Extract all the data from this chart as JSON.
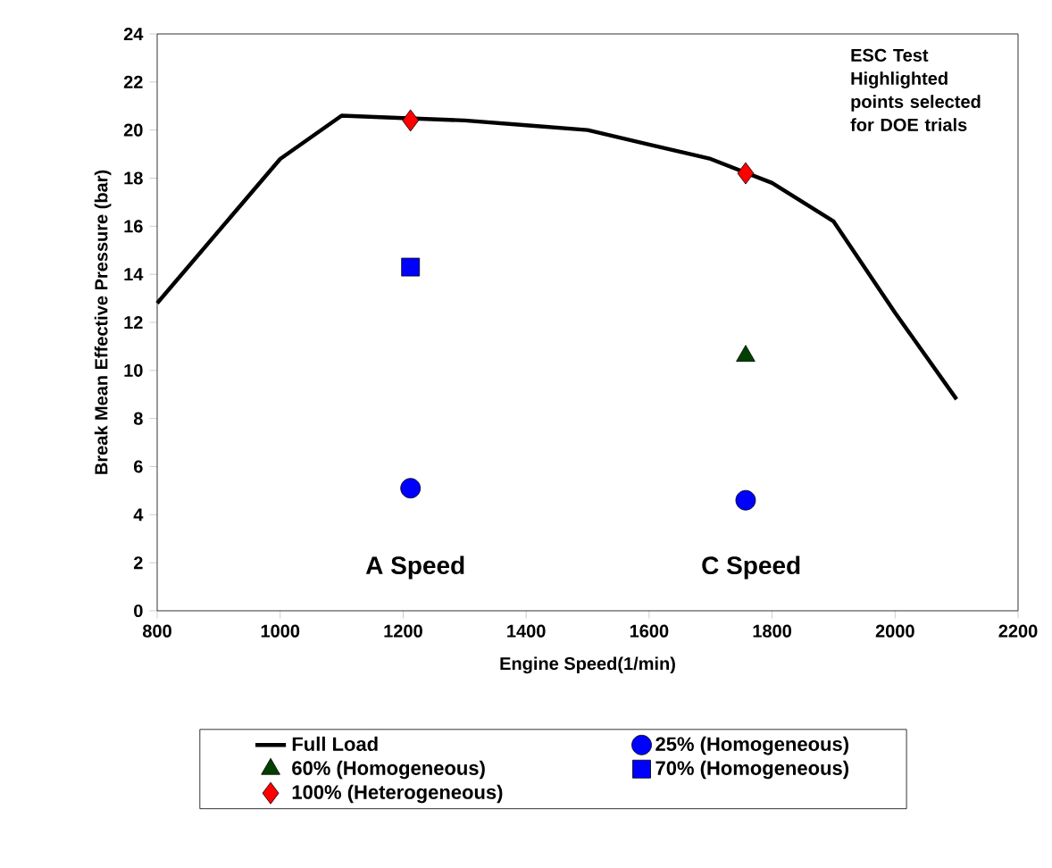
{
  "chart_data": {
    "type": "scatter",
    "xlabel": "Engine Speed(1/min)",
    "ylabel": "Break Mean Effective Pressure (bar)",
    "xlim": [
      800,
      2200
    ],
    "xticks": [
      800,
      1000,
      1200,
      1400,
      1600,
      1800,
      2000,
      2200
    ],
    "ylim": [
      0,
      24
    ],
    "yticks": [
      0,
      2,
      4,
      6,
      8,
      10,
      12,
      14,
      16,
      18,
      20,
      22,
      24
    ],
    "legend": "bottom",
    "grid": false,
    "series": [
      {
        "name": "Full Load",
        "type": "line",
        "color": "#000000",
        "marker": "none",
        "x": [
          800,
          1000,
          1100,
          1200,
          1300,
          1400,
          1500,
          1600,
          1700,
          1800,
          1900,
          2000,
          2100
        ],
        "values": [
          12.8,
          18.8,
          20.6,
          20.5,
          20.4,
          20.2,
          20.0,
          19.4,
          18.8,
          17.8,
          16.2,
          12.4,
          8.8
        ]
      },
      {
        "name": "25% (Homogeneous)",
        "color": "#0000ff",
        "marker": "circle",
        "x": [
          1212,
          1757
        ],
        "values": [
          5.1,
          4.6
        ]
      },
      {
        "name": "60% (Homogeneous)",
        "color": "#004000",
        "marker": "triangle",
        "x": [
          1757
        ],
        "values": [
          10.6
        ]
      },
      {
        "name": "70% (Homogeneous)",
        "color": "#0000ff",
        "marker": "square",
        "x": [
          1212
        ],
        "values": [
          14.3
        ]
      },
      {
        "name": "100% (Heterogeneous)",
        "color": "#ff0000",
        "marker": "diamond",
        "x": [
          1212,
          1757
        ],
        "values": [
          20.4,
          18.2
        ]
      }
    ],
    "annotations": [
      "A Speed",
      "C Speed",
      "ESC Test Highlighted points selected for DOE trials"
    ]
  }
}
